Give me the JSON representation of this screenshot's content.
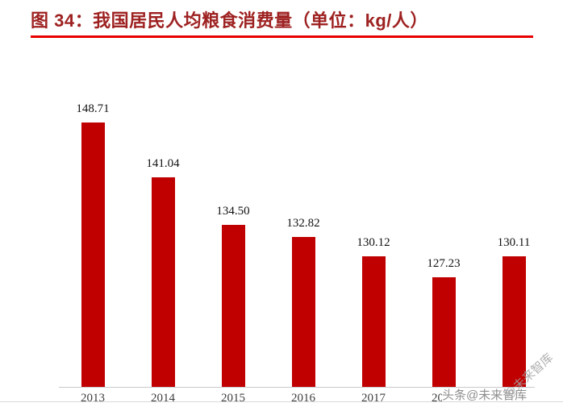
{
  "page": {
    "title": "图 34：我国居民人均粮食消费量（单位：kg/人）"
  },
  "colors": {
    "bar": "#c00000",
    "title_text": "#9e2121",
    "divider": "#e60000",
    "axis_line": "#c9c9c9",
    "watermark": "#8f8f8f"
  },
  "chart_data": {
    "type": "bar",
    "title": "图 34：我国居民人均粮食消费量（单位：kg/人）",
    "unit": "kg/人",
    "categories": [
      "2013",
      "2014",
      "2015",
      "2016",
      "2017",
      "2018",
      "2019"
    ],
    "values": [
      148.71,
      141.04,
      134.5,
      132.82,
      130.12,
      127.23,
      130.11
    ],
    "value_labels": [
      "148.71",
      "141.04",
      "134.50",
      "132.82",
      "130.12",
      "127.23",
      "130.11"
    ],
    "xlabel": "",
    "ylabel": "",
    "ylim": [
      112,
      150
    ],
    "grid": false,
    "legend": "none",
    "bar_color": "#c00000"
  },
  "watermark": {
    "horizontal": "头条@未来智库",
    "diagonal": "@未来智库"
  }
}
